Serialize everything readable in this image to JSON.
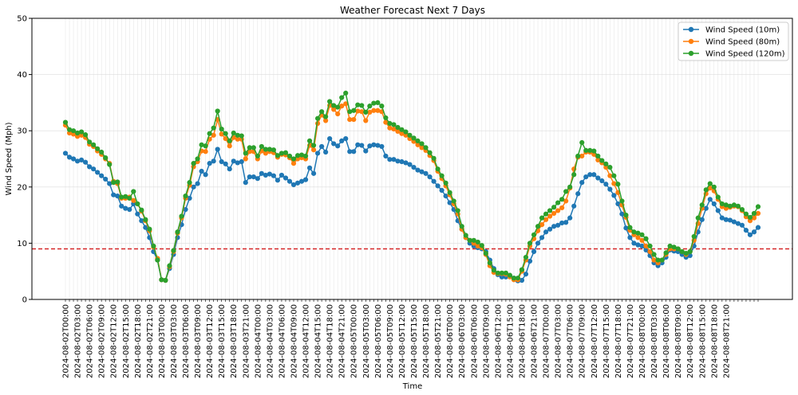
{
  "chart_data": {
    "type": "line",
    "title": "Weather Forecast Next 7 Days",
    "xlabel": "Time",
    "ylabel": "Wind Speed (Mph)",
    "ylim": [
      0,
      50
    ],
    "yticks": [
      0,
      10,
      20,
      30,
      40,
      50
    ],
    "grid": true,
    "legend_position": "top-right",
    "threshold": 9,
    "threshold_color": "#d62728",
    "x_start": "2024-08-02T00:00",
    "x_step_hours": 1,
    "x_tick_every": 3,
    "xticks": [
      "2024-08-02T00:00",
      "2024-08-02T03:00",
      "2024-08-02T06:00",
      "2024-08-02T09:00",
      "2024-08-02T12:00",
      "2024-08-02T15:00",
      "2024-08-02T18:00",
      "2024-08-02T21:00",
      "2024-08-03T00:00",
      "2024-08-03T03:00",
      "2024-08-03T06:00",
      "2024-08-03T09:00",
      "2024-08-03T12:00",
      "2024-08-03T15:00",
      "2024-08-03T18:00",
      "2024-08-03T21:00",
      "2024-08-04T00:00",
      "2024-08-04T03:00",
      "2024-08-04T06:00",
      "2024-08-04T09:00",
      "2024-08-04T12:00",
      "2024-08-04T15:00",
      "2024-08-04T18:00",
      "2024-08-04T21:00",
      "2024-08-05T00:00",
      "2024-08-05T03:00",
      "2024-08-05T06:00",
      "2024-08-05T09:00",
      "2024-08-05T12:00",
      "2024-08-05T15:00",
      "2024-08-05T18:00",
      "2024-08-05T21:00",
      "2024-08-06T00:00",
      "2024-08-06T03:00",
      "2024-08-06T06:00",
      "2024-08-06T09:00",
      "2024-08-06T12:00",
      "2024-08-06T15:00",
      "2024-08-06T18:00",
      "2024-08-06T21:00",
      "2024-08-07T00:00",
      "2024-08-07T03:00",
      "2024-08-07T06:00",
      "2024-08-07T09:00",
      "2024-08-07T12:00",
      "2024-08-07T15:00",
      "2024-08-07T18:00",
      "2024-08-07T21:00",
      "2024-08-08T00:00",
      "2024-08-08T03:00",
      "2024-08-08T06:00",
      "2024-08-08T09:00",
      "2024-08-08T12:00",
      "2024-08-08T15:00",
      "2024-08-08T18:00",
      "2024-08-08T21:00"
    ],
    "series": [
      {
        "name": "Wind Speed (10m)",
        "color": "#1f77b4",
        "values": [
          26.0,
          25.3,
          25.0,
          24.6,
          24.8,
          24.4,
          23.6,
          23.2,
          22.6,
          22.0,
          21.4,
          20.6,
          18.6,
          18.4,
          16.6,
          16.2,
          16.0,
          17.0,
          15.2,
          14.0,
          12.8,
          11.0,
          8.5,
          7.0,
          3.5,
          3.4,
          5.5,
          8.0,
          11.0,
          13.3,
          16.0,
          18.0,
          20.0,
          20.6,
          22.8,
          22.2,
          24.2,
          24.6,
          26.7,
          24.5,
          24.1,
          23.2,
          24.6,
          24.3,
          24.5,
          20.8,
          21.8,
          21.8,
          21.5,
          22.4,
          22.1,
          22.3,
          22.0,
          21.2,
          22.1,
          21.6,
          21.0,
          20.4,
          20.7,
          21.0,
          21.3,
          23.4,
          22.4,
          26.0,
          27.2,
          26.2,
          28.6,
          27.7,
          27.3,
          28.2,
          28.6,
          26.3,
          26.3,
          27.5,
          27.4,
          26.4,
          27.3,
          27.5,
          27.4,
          27.2,
          25.5,
          24.9,
          24.9,
          24.6,
          24.5,
          24.3,
          24.0,
          23.5,
          23.0,
          22.7,
          22.4,
          21.8,
          21.0,
          20.2,
          19.4,
          18.4,
          17.2,
          16.0,
          14.0,
          12.5,
          11.0,
          10.0,
          9.5,
          9.2,
          9.0,
          8.5,
          7.0,
          5.5,
          4.4,
          4.0,
          4.0,
          4.1,
          3.8,
          3.3,
          3.4,
          4.5,
          6.8,
          8.5,
          10.0,
          11.0,
          12.0,
          12.5,
          13.0,
          13.2,
          13.6,
          13.7,
          14.5,
          16.6,
          18.8,
          20.8,
          21.8,
          22.2,
          22.2,
          21.6,
          21.1,
          20.5,
          19.6,
          18.5,
          17.0,
          15.2,
          12.7,
          11.0,
          10.0,
          9.7,
          9.5,
          8.8,
          7.8,
          6.5,
          6.0,
          6.5,
          7.5,
          8.8,
          8.6,
          8.5,
          8.0,
          7.5,
          7.8,
          9.5,
          12.0,
          14.2,
          16.2,
          17.8,
          17.0,
          15.8,
          14.5,
          14.2,
          14.1,
          13.8,
          13.5,
          13.2,
          12.3,
          11.5,
          12.0,
          12.8
        ]
      },
      {
        "name": "Wind Speed (80m)",
        "color": "#ff7f0e",
        "values": [
          31.0,
          29.6,
          29.4,
          29.0,
          29.2,
          28.8,
          27.6,
          27.2,
          26.4,
          25.8,
          25.0,
          24.2,
          21.0,
          20.6,
          18.0,
          18.0,
          18.2,
          17.6,
          17.0,
          15.7,
          14.0,
          12.2,
          9.3,
          7.3,
          3.5,
          3.4,
          5.8,
          8.5,
          11.8,
          14.5,
          18.0,
          20.3,
          23.6,
          24.5,
          26.4,
          26.3,
          28.5,
          29.2,
          32.0,
          29.4,
          28.6,
          27.3,
          28.8,
          28.5,
          28.5,
          25.0,
          26.3,
          26.3,
          25.0,
          26.4,
          26.0,
          26.3,
          26.1,
          25.3,
          25.8,
          25.7,
          25.2,
          24.2,
          25.0,
          25.2,
          25.0,
          27.4,
          26.6,
          31.3,
          32.8,
          31.8,
          34.5,
          33.8,
          33.0,
          34.4,
          34.8,
          32.0,
          32.0,
          33.5,
          33.4,
          31.8,
          33.3,
          33.6,
          33.6,
          33.4,
          31.5,
          30.5,
          30.3,
          29.9,
          29.5,
          29.2,
          28.6,
          28.1,
          27.5,
          27.0,
          26.5,
          25.6,
          24.7,
          22.8,
          21.5,
          20.2,
          18.6,
          17.0,
          15.2,
          12.5,
          11.0,
          10.5,
          10.0,
          9.5,
          9.2,
          8.0,
          6.0,
          4.8,
          4.6,
          4.6,
          4.5,
          4.0,
          3.5,
          3.5,
          5.0,
          7.0,
          9.5,
          10.8,
          12.2,
          13.3,
          14.2,
          14.8,
          15.3,
          15.8,
          16.3,
          17.5,
          19.8,
          23.2,
          25.3,
          25.5,
          26.2,
          26.2,
          25.8,
          24.8,
          24.3,
          23.5,
          22.0,
          20.6,
          19.0,
          16.8,
          14.6,
          12.3,
          11.5,
          11.0,
          10.5,
          9.5,
          8.5,
          7.0,
          6.5,
          7.0,
          8.0,
          9.0,
          9.0,
          9.0,
          8.5,
          8.0,
          8.5,
          10.5,
          13.5,
          16.2,
          18.8,
          19.8,
          19.3,
          17.8,
          16.5,
          16.2,
          16.4,
          16.6,
          16.5,
          15.8,
          14.7,
          14.0,
          14.5,
          15.3
        ]
      },
      {
        "name": "Wind Speed (120m)",
        "color": "#2ca02c",
        "values": [
          31.5,
          30.2,
          30.0,
          29.6,
          29.8,
          29.3,
          28.0,
          27.5,
          26.8,
          26.2,
          25.2,
          24.0,
          20.8,
          20.9,
          18.2,
          18.3,
          18.0,
          19.2,
          17.0,
          15.9,
          14.2,
          12.5,
          9.5,
          7.0,
          3.5,
          3.4,
          6.0,
          8.7,
          12.0,
          14.8,
          18.4,
          20.8,
          24.2,
          25.0,
          27.5,
          27.3,
          29.5,
          30.5,
          33.5,
          30.3,
          29.5,
          28.2,
          29.6,
          29.2,
          29.1,
          26.0,
          27.0,
          27.0,
          25.5,
          27.2,
          26.7,
          26.7,
          26.6,
          25.6,
          26.0,
          26.1,
          25.5,
          25.0,
          25.6,
          25.7,
          25.5,
          28.2,
          27.4,
          32.2,
          33.4,
          32.5,
          35.2,
          34.5,
          34.2,
          35.9,
          36.7,
          33.4,
          33.6,
          34.6,
          34.5,
          33.3,
          34.4,
          34.9,
          35.0,
          34.4,
          32.3,
          31.3,
          31.1,
          30.6,
          30.2,
          29.8,
          29.2,
          28.7,
          28.2,
          27.7,
          27.0,
          26.1,
          25.1,
          23.2,
          22.0,
          20.7,
          19.0,
          17.5,
          15.8,
          13.0,
          11.4,
          10.5,
          10.5,
          10.2,
          9.6,
          8.2,
          6.5,
          5.2,
          4.7,
          4.7,
          4.7,
          4.3,
          3.8,
          3.8,
          5.3,
          7.5,
          10.0,
          11.5,
          13.0,
          14.5,
          15.2,
          15.8,
          16.4,
          17.2,
          17.8,
          19.2,
          20.0,
          22.2,
          25.5,
          27.9,
          26.5,
          26.5,
          26.4,
          25.5,
          24.7,
          24.1,
          23.5,
          22.0,
          20.5,
          17.5,
          15.0,
          12.8,
          12.0,
          11.8,
          11.5,
          10.8,
          9.5,
          8.0,
          7.0,
          7.0,
          8.3,
          9.5,
          9.3,
          9.0,
          8.5,
          8.2,
          8.5,
          11.2,
          14.5,
          16.8,
          19.5,
          20.6,
          20.0,
          18.2,
          17.0,
          16.8,
          16.6,
          16.8,
          16.6,
          16.0,
          15.2,
          14.6,
          15.3,
          16.5
        ]
      }
    ]
  }
}
